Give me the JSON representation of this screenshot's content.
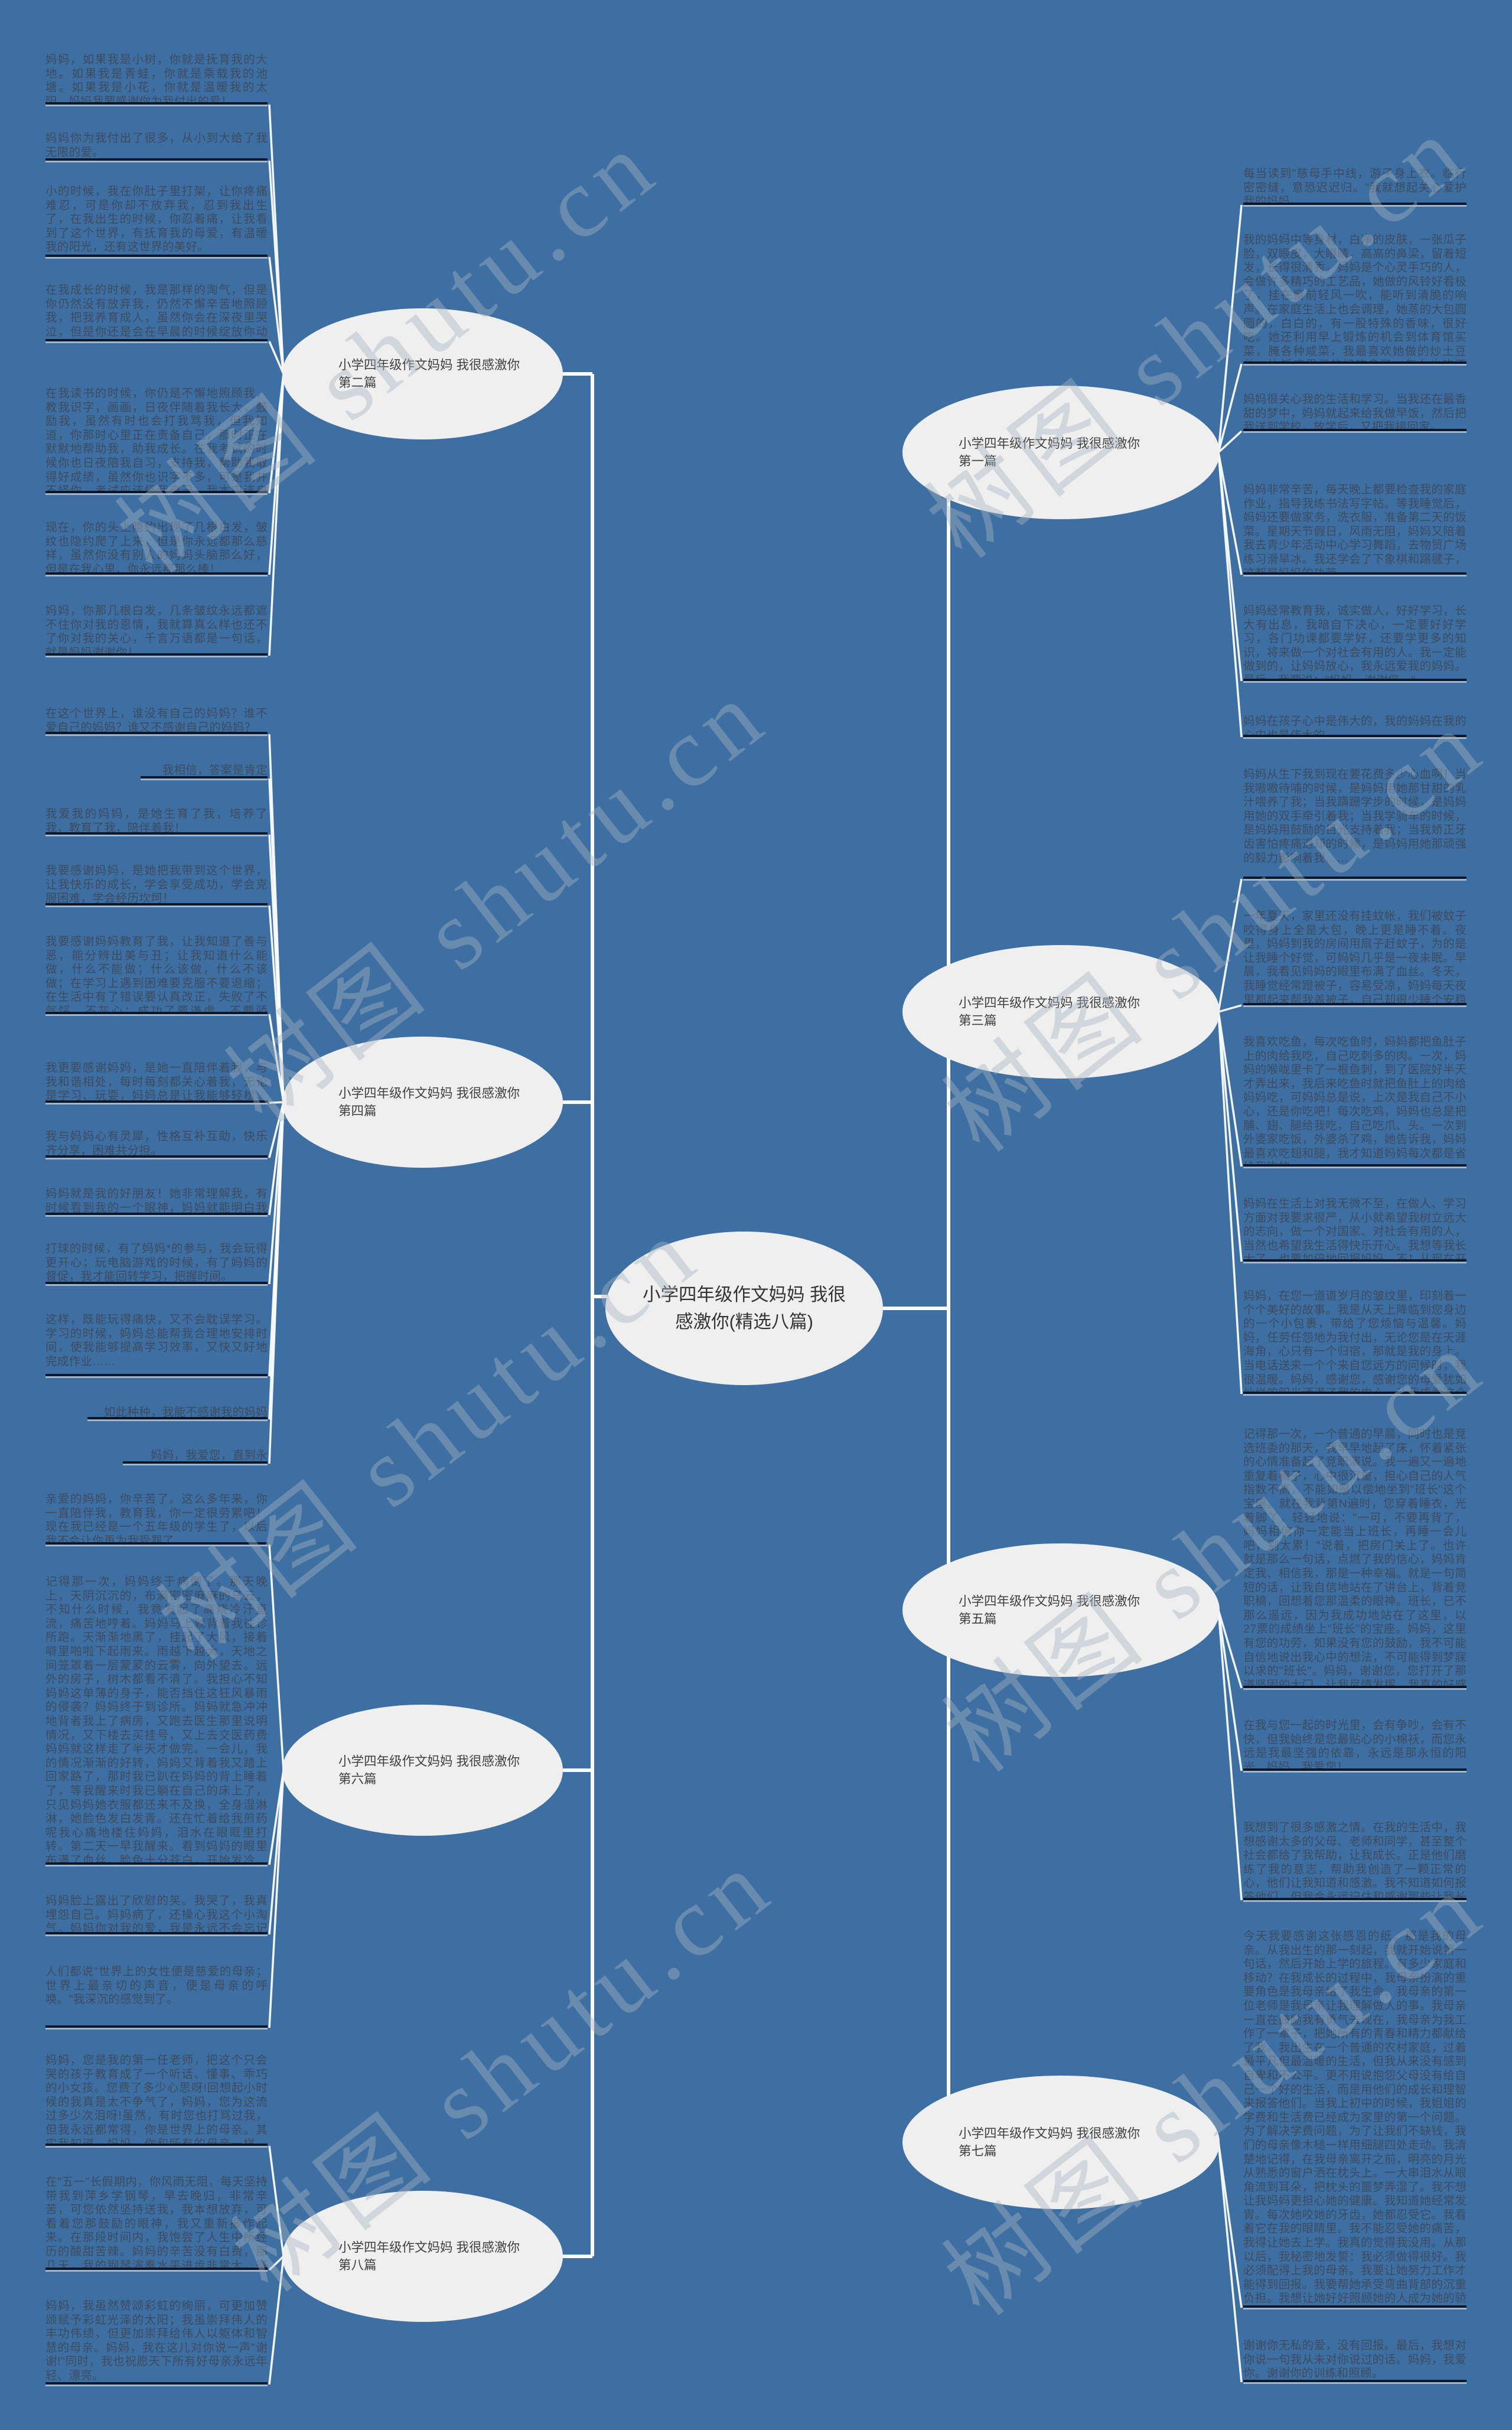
{
  "title": "小学四年级作文妈妈 我很感激你(精选八篇)",
  "center": {
    "label": "小学四年级作文妈妈 我很感激你(精选八篇)"
  },
  "watermark": {
    "text": "树图 shutu.cn"
  },
  "colors": {
    "background": "#3e6fa3",
    "node_fill": "#efefef",
    "node_text": "#3f3f3f",
    "paragraph_text": "#3d4b5f",
    "underline": "#0c1729",
    "connector": "#fbfcfd"
  },
  "branches": [
    {
      "label": "小学四年级作文妈妈 我很感激你",
      "sub": "第一篇"
    },
    {
      "label": "小学四年级作文妈妈 我很感激你",
      "sub": "第二篇"
    },
    {
      "label": "小学四年级作文妈妈 我很感激你",
      "sub": "第三篇"
    },
    {
      "label": "小学四年级作文妈妈 我很感激你",
      "sub": "第四篇"
    },
    {
      "label": "小学四年级作文妈妈 我很感激你",
      "sub": "第五篇"
    },
    {
      "label": "小学四年级作文妈妈 我很感激你",
      "sub": "第六篇"
    },
    {
      "label": "小学四年级作文妈妈 我很感激你",
      "sub": "第七篇"
    },
    {
      "label": "小学四年级作文妈妈 我很感激你",
      "sub": "第八篇"
    }
  ],
  "left_blocks": [
    {
      "text": "妈妈，如果我是小树，你就是抚育我的大地。如果我是青蛙，你就是乘载我的池塘。如果我是小花，你就是温暖我的太阳。妈妈我要感谢你为我付出的爱！",
      "align": "left"
    },
    {
      "text": "妈妈你为我付出了很多，从小到大给了我无限的爱。",
      "align": "left"
    },
    {
      "text": "小的时候，我在你肚子里打架，让你疼痛难忍，可是你却不放弃我，忍到我出生了，在我出生的时候，你忍着痛，让我看到了这个世界，有抚育我的母爱，有温暖我的阳光，还有这世界的美好。",
      "align": "left"
    },
    {
      "text": "在我成长的时候，我是那样的淘气，但是你仍然没有放弃我，仍然不懈辛苦地照顾我，把我养育成人，虽然你会在深夜里哭泣，但是你还是会在早晨的时候绽放你动人的微笑。",
      "align": "left"
    },
    {
      "text": "在我读书的时候，你仍是不懈地照顾我，教我识字，画画，日夜伴随着我长大，鼓励我，虽然有时也会打我骂我，但我知道，你那时心里正在责备自己，那时正在默默地帮助我，助我成长。在我考试的时候你也日夜陪我自习，支持我，帮助我取得好成绩，虽然你也识字不多，可是我并不怪你，考试应该怪我自己，我本应该自己取得好成绩，不应该依赖你。",
      "align": "left"
    },
    {
      "text": "现在，你的头上隐约出现了几根白发，皱纹也隐约爬了上来，但是你永远都那么慈祥，虽然你没有别人的妈妈头脑那么好，但是在我心里，你永远都那么棒！",
      "align": "left"
    },
    {
      "text": "妈妈，你那几根白发，几条皱纹永远都遮不住你对我的恩情，我就算真么样也还不了你对我的关心，千言万语都是一句话，就是妈妈谢谢你！",
      "align": "left"
    },
    {
      "text": "在这个世界上，谁没有自己的妈妈？谁不爱自己的妈妈？谁又不感谢自己的妈妈？",
      "align": "left"
    },
    {
      "text": "我相信，答案是肯定的！",
      "align": "right"
    },
    {
      "text": "我爱我的妈妈，是她生育了我，培养了我，教育了我，陪伴着我！",
      "align": "left"
    },
    {
      "text": "我要感谢妈妈，是她把我带到这个世界，让我快乐的成长，学会享受成功，学会克服困难，学会经历坎坷！",
      "align": "left"
    },
    {
      "text": "我要感谢妈妈教育了我，让我知道了善与恶，能分辨出美与丑；让我知道什么能做，什么不能做；什么该做，什么不该做；在学习上遇到困难要克服不要退缩；在生活中有了错误要认真改正，失败了不气馁、不灰心；成功了要谦虚，不要骄傲！",
      "align": "left"
    },
    {
      "text": "我更要感谢妈妈，是她一直陪伴着我，与我和谐相处，每时每刻都关心着我，无论是学习、玩耍，妈妈总是让我能够轻松、愉快。",
      "align": "left"
    },
    {
      "text": "我与妈妈心有灵犀，性格互补互助，快乐齐分享，困难共分担。",
      "align": "left"
    },
    {
      "text": "妈妈就是我的好朋友！她非常理解我，有时候看到我的一个眼神，妈妈就能明白我的想法。",
      "align": "left"
    },
    {
      "text": "打球的时候，有了妈妈*的参与，我会玩得更开心；玩电脑游戏的时候，有了妈妈的督促，我才能回转学习，把握时间。",
      "align": "left"
    },
    {
      "text": "这样，既能玩得痛快，又不会耽误学习。学习的时候，妈妈总能帮我合理地安排时间，使我能够提高学习效率，又快又好地完成作业……",
      "align": "left"
    },
    {
      "text": "如此种种，我能不感谢我的妈妈吗？",
      "align": "right"
    },
    {
      "text": "妈妈，我爱您，直到永远……",
      "align": "right"
    },
    {
      "text": "亲爱的妈妈，你辛苦了。这么多年来，你一直陪伴我，教育我，你一定很劳累吧！现在我已经是一个五年级的学生了，以后我不会让你再为我受罪了",
      "align": "left"
    },
    {
      "text": "记得那一次，妈妈终于病倒了。那天晚上，天阴沉沉的，布满密密麻麻的乌云，不知什么时候，我竟发起了高烧冷汗直流，痛苦地哼着。妈妈马上就背着我往诊所跑。天渐渐地黑了，挂起了大风，接着噼里啪啦下起雨来。雨越下越大，天地之间笼罩着一层蒙蒙的云雾，向外望去。远外的房子，树木都看不清了。我担心不知妈妈这单薄的身子，能否挡住这狂风暴雨的侵袭？妈妈终于到诊所。妈妈就急冲冲地背者我上了病房，又跑去医生那里说明情况，又下楼去买挂号，又上去交医药费妈妈就这样走了半天才做完。一会儿，我的情况渐渐的好转，妈妈又背着我又踏上回家路了，那时我已趴在妈妈的背上睡着了，等我醒来时我已躺在自己的床上了，只见妈妈她衣服都还来不及换，全身湿淋淋，她脸色发白发青。还在忙着给我煎药呢我心痛地楼住妈妈，泪水在眼眶里打转。第二天一早我醒来。看到妈妈的眼里布满了血丝，脸色十分苍白，开始发冷，随后又发烧，最后病倒了，她还一个劲地问我：\"你好些了吗？\"我说：\"我好些了\"。",
      "align": "left"
    },
    {
      "text": "妈妈脸上露出了欣慰的笑。我哭了，我真埋怨自己。妈妈病了，还操心我这个小淘气。妈妈你对我的爱，我是永远不会忘记的。",
      "align": "left"
    },
    {
      "text": "人们都说\"世界上的女性便是慈爱的母亲；世界上最亲切的声音，便是母亲的呼唤。\"我深沉的感觉到了。",
      "align": "left"
    },
    {
      "text": "妈妈，您是我的第一任老师，把这个只会哭的孩子教育成了一个听话、懂事、乖巧的小女孩。您费了多少心思呀!回想起小时候的我真是太不争气了，妈妈，您为这流过多少次泪呀!虽然，有时您也打骂过我，但我永远都常得，你是世界上的母亲。其实我知道，妈妈，你和所有的母亲一样，望女成凤。",
      "align": "left"
    },
    {
      "text": "在\"五一\"长假期内，你风雨无阻，每天坚持带我到萍乡学钢琴，早去晚归，非常辛苦，可您依然坚持送我，我本想放弃，可看着您那鼓励的眼神，我又重新振作起来。在那段时间内，我饱尝了人生中所经历的酸甜苦辣。妈妈的辛苦没有白费，那几天，我的钢琴演奏水平进步非常大，得到了老师的表扬。",
      "align": "left"
    },
    {
      "text": "妈妈，我虽然赞颂彩虹的绚丽，可更加赞颂赋予彩虹光泽的太阳；我虽崇拜伟人的丰功伟绩，但更加崇拜给伟人以躯体和智慧的母亲。妈妈，我在这儿对你说一声\"谢谢!\"同时，我也祝愿天下所有好母亲永远年轻、漂亮。",
      "align": "left"
    }
  ],
  "right_blocks": [
    {
      "text": "每当读到\"慈母手中线，游子身上衣。临行密密缝，意恐迟迟归。\"我就想起关心爱护我的妈妈。",
      "align": "left"
    },
    {
      "text": "我的妈妈中等身材，白净的皮肤，一张瓜子脸，双眼皮，大眼睛，高高的鼻梁，留着短发，长得很清秀。妈妈是个心灵手巧的人，会做许多精巧的工艺品，她做的风铃好看极了，挂在窗前轻风一吹，能听到清脆的响声。在家庭生活上也会调理，她蒸的大包圆圆的，白白的，有一股特殊的香味，很好吃。她还利用早上锻炼的机会到体育馆买菜，腌各种咸菜，我最喜欢她做的炒土豆丝，比饭店里买的好吃多了，怎么也吃不够。",
      "align": "left"
    },
    {
      "text": "妈妈很关心我的生活和学习。当我还在最香甜的梦中，妈妈就起来给我做早饭，然后把我送到学校，放学后，又把我接回家。",
      "align": "left"
    },
    {
      "text": "妈妈非常辛苦，每天晚上都要检查我的家庭作业，指导我练书法写字帖。等我睡觉后，妈妈还要做家务，洗衣服，准备第二天的饭菜。星期天节假日，风雨无阻，妈妈又陪着我去青少年活动中心学习舞蹈，去物贸广场练习滑旱冰。我还学会了下象棋和踢毽子，这都是妈妈的功劳。",
      "align": "left"
    },
    {
      "text": "妈妈经常教育我，诚实做人，好好学习，长大有出息，我暗自下决心，一定要好好学习，各门功课都要学好，还要学更多的知识，将来做一个对社会有用的人。我一定能做到的，让妈妈放心，我永远爱我的妈妈。最后，我要说：\"妈妈，谢谢您。\"",
      "align": "left"
    },
    {
      "text": "妈妈在孩子心中是伟大的，我的妈妈在我的心中也是伟大的。",
      "align": "left"
    },
    {
      "text": "妈妈从生下我到现在要花费多少心血啊！当我嗷嗷待哺的时候，是妈妈用她那甘甜的乳汁喂养了我；当我蹒跚学步的时候，是妈妈用她的双手牵引着我；当我学骑车的时候，是妈妈用鼓励的目光支持着我；当我娇正牙齿害怕疼痛退却的时候，是妈妈用她那顽强的毅力影响着我……",
      "align": "left"
    },
    {
      "text": "一年夏天，家里还没有挂蚊帐，我们被蚊子咬得身上全是大包，晚上更是睡不着。夜里，妈妈到我的房间用扇子赶蚊子，为的是让我睡个好觉，可妈妈几乎是一夜未眠。早晨，我看见妈妈的眼里布满了血丝。冬天，我睡觉经常蹬被子，容易受凉，妈妈每天夜里都起来帮我盖被子，自己却很少睡个安稳觉。",
      "align": "left"
    },
    {
      "text": "我喜欢吃鱼，每次吃鱼时，妈妈都把鱼肚子上的肉给我吃，自己吃刺多的肉。一次，妈妈的喉咙里卡了一根鱼刺，到了医院好半天才弄出来，我后来吃鱼时就把鱼肚上的肉给妈妈吃，可妈妈总是说，上次是我自己不小心，还是你吃吧！每次吃鸡，妈妈也总是把脯、翅、腿给我吃，自己吃爪、头。一次到外婆家吃饭，外婆杀了鸡，她告诉我，妈妈最喜欢吃翅和腿，我才知道妈妈每次都是省给我吃的。",
      "align": "left"
    },
    {
      "text": "妈妈在生活上对我无微不至，在做人、学习方面对我要求很严，从小就希望我树立远大的志向，做一个对国家、对社会有用的人，当然也希望我生活得快乐开心。我想等我长大了，也要加倍地回报妈妈。不！从现在开始。",
      "align": "left"
    },
    {
      "text": "妈妈，在您一道道岁月的皱纹里，印刻着一个个美好的故事。我是从天上降临到您身边的一个小包裹，带给了您烦恼与温馨。妈妈，任劳任怨地为我付出，无论您是在天涯海角，心只有一个归宿，那就是我的身上。当电话送来一个个来自您远方的问候时，我很温暖。妈妈，感谢您，感谢您的母爱犹如灿烂的阳光洒满了我的内心，让我成为这个世上最幸福的人。",
      "align": "left"
    },
    {
      "text": "记得那一次，一个普通的早晨，同时也是竞选班委的那天，我早早地起了床，怀着紧张的心情准备起了竞职演说。我一遍又一遍地重复着稿子，心中很沉重，担心自己的人气指数不高，不能如愿以偿地坐到\"班长\"这个宝座。就在我背第N遍时，您穿着睡衣，光着脚丫，轻轻地说：\"一可，不要再背了，妈妈相信你一定能当上班长，再睡一会儿吧，别太累！\"说着，把房门关上了。也许就是那么一句话，点燃了我的信心，妈妈肯定我、相信我，那是一种幸福。就是一句简短的话，让我自信地站在了讲台上，背着竞职稿，回想着您那温柔的眼神。班长，已不那么遥远，因为我成功地站在了这里，以27票的成绩坐上\"班长\"的宝座。妈妈，这里有您的功劳，如果没有您的鼓励，我不可能自信地说出我心中的想法，不可能得到梦寐以求的\"班长\"。妈妈，谢谢您，您打开了那道坚固的大门，让我尽情发挥，我真的好感谢您。",
      "align": "left"
    },
    {
      "text": "在我与您一起的时光里，会有争吵，会有不快，但我始终是您最贴心的小棉袄，而您永远是我最坚强的依靠，永远是那永恒的阳光。妈妈，我爱您！",
      "align": "left"
    },
    {
      "text": "我想到了很多感激之情。在我的生活中，我想感谢太多的父母、老师和同学，甚至整个社会都给了我帮助，让我成长。正是他们磨练了我的意志，帮助我创造了一颗正常的心，他们让我知道和感激。我不知道如何报答他们，但我会永远记住和感谢那些让我长大的人。",
      "align": "left"
    },
    {
      "text": "今天我要感谢这张感恩的纸。那是我的母亲。从我出生的那一刻起，我就开始说第一句话，然后开始上学的旅程。有多少家庭和移动？在我成长的过程中，我母亲扮演的重要角色是我母亲给了我生命。我母亲的第一位老师是我母亲让我理解做人的事。我母亲一直在鼓励我有勇气去现在，我母亲为我工作了一辈子，把她所有的青春和精力都献给了我。我出生在一个普通的农村家庭，过着最平凡但最温暖的生活，但我从来没有感到自卑和不公平。更不用说抱怨父母没有给自己一个好的生活，而是用他们的成长和理智来报答他们。当我上初中的时候，我姐姐的学费和生活费已经成为家里的第一个问题。为了解决学费问题，为了让我们不缺钱，我们的母亲像木槌一样用细腿四处走动。我清楚地记得，在我母亲离开之前，明亮的月光从熟悉的窗户洒在枕头上。一大串泪水从眼角流到耳朵，把枕头的噩梦弄湿了。我不想让我妈妈更担心她的健康。我知道她经常发胃。每次她咬她的牙齿，她都忍受它。我看着它在我的眼睛里。我不能忍受她的痛苦，我得让她去上学。我真的觉得我没用。从那以后，我秘密地发誓：我必须做得很好。我必须配得上我的母亲。我要让她努力工作才能得到回报。我要帮她承受弯曲背部的沉重负担。我想让她好好照顾她的人成为她的骄傲。妈妈，谢谢你给我生命带我去这个世界。",
      "align": "left"
    },
    {
      "text": "谢谢你无私的爱，没有回报。最后，我想对你说一句我从未对你说过的话。妈妈，我爱你。谢谢你的训练和照顾。",
      "align": "left"
    }
  ]
}
